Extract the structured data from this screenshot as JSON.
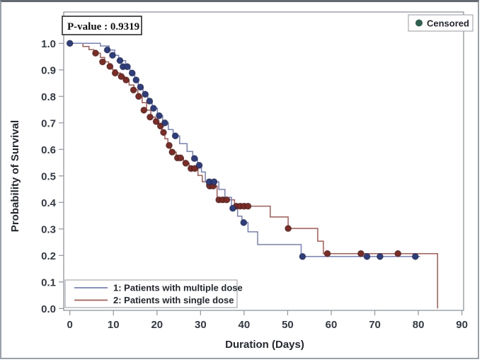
{
  "figure": {
    "pvalue_label": "P-value : 0.9319",
    "p_value": 0.9319,
    "censored_label": "Censored",
    "xlabel": "Duration (Days)",
    "ylabel": "Probability of Survival"
  },
  "colors": {
    "blue_line": "#7580bf",
    "blue_marker": "#2e3d7e",
    "red_line": "#aa5a52",
    "red_marker": "#7c2b25",
    "censored_legend_dot": "#2e5f4f",
    "frame": "#8f969e",
    "text": "#23272e",
    "pvalue_box_border": "#2b2b2b",
    "legend_box_border": "#a6abb0"
  },
  "chart_data": {
    "type": "line",
    "subtype": "kaplan-meier-step",
    "title": "",
    "xlabel": "Duration (Days)",
    "ylabel": "Probability of Survival",
    "xlim": [
      0,
      92
    ],
    "ylim": [
      0.0,
      1.0
    ],
    "x_ticks": [
      0,
      10,
      20,
      30,
      40,
      50,
      60,
      70,
      80,
      90
    ],
    "y_ticks": [
      0.0,
      0.1,
      0.2,
      0.3,
      0.4,
      0.5,
      0.6,
      0.7,
      0.8,
      0.9,
      1.0
    ],
    "grid": false,
    "p_value_annotation": "P-value : 0.9319",
    "censored_marker_label": "Censored",
    "legend_position": "bottom-left-inside",
    "series": [
      {
        "name": "1: Patients with multiple dose",
        "line_color": "#7580bf",
        "marker_color": "#2e3d7e",
        "end_day": 80.4,
        "steps": [
          [
            0,
            1.0
          ],
          [
            7,
            0.99
          ],
          [
            9,
            0.975
          ],
          [
            10.3,
            0.955
          ],
          [
            11.2,
            0.935
          ],
          [
            12.8,
            0.912
          ],
          [
            13.8,
            0.888
          ],
          [
            14.9,
            0.862
          ],
          [
            15.7,
            0.835
          ],
          [
            16.8,
            0.808
          ],
          [
            17.9,
            0.782
          ],
          [
            18.9,
            0.755
          ],
          [
            20.1,
            0.727
          ],
          [
            21.3,
            0.7
          ],
          [
            22.6,
            0.675
          ],
          [
            23.7,
            0.651
          ],
          [
            25.2,
            0.622
          ],
          [
            26.9,
            0.592
          ],
          [
            28.2,
            0.566
          ],
          [
            29.3,
            0.54
          ],
          [
            30.2,
            0.515
          ],
          [
            31.1,
            0.478
          ],
          [
            34.2,
            0.449
          ],
          [
            35.6,
            0.419
          ],
          [
            37.1,
            0.378
          ],
          [
            38.5,
            0.348
          ],
          [
            39.5,
            0.324
          ],
          [
            40.9,
            0.289
          ],
          [
            43.1,
            0.241
          ],
          [
            53.1,
            0.196
          ]
        ],
        "censored": [
          [
            0,
            1.0
          ],
          [
            8.6,
            0.975
          ],
          [
            9.8,
            0.955
          ],
          [
            11.5,
            0.935
          ],
          [
            12.2,
            0.912
          ],
          [
            13.2,
            0.912
          ],
          [
            14.3,
            0.888
          ],
          [
            15.2,
            0.862
          ],
          [
            16.2,
            0.835
          ],
          [
            17.3,
            0.808
          ],
          [
            18.3,
            0.782
          ],
          [
            19.2,
            0.755
          ],
          [
            20.5,
            0.727
          ],
          [
            21.8,
            0.7
          ],
          [
            24.2,
            0.651
          ],
          [
            28.6,
            0.566
          ],
          [
            29.7,
            0.54
          ],
          [
            32.0,
            0.478
          ],
          [
            33.1,
            0.478
          ],
          [
            37.4,
            0.378
          ],
          [
            39.9,
            0.324
          ],
          [
            53.4,
            0.196
          ],
          [
            68.2,
            0.196
          ],
          [
            71.2,
            0.196
          ],
          [
            79.3,
            0.196
          ]
        ]
      },
      {
        "name": "2: Patients with single dose",
        "line_color": "#aa5a52",
        "marker_color": "#7c2b25",
        "end_day": 84.4,
        "steps": [
          [
            0,
            1.0
          ],
          [
            3,
            0.988
          ],
          [
            4.4,
            0.976
          ],
          [
            5.5,
            0.963
          ],
          [
            7,
            0.947
          ],
          [
            8,
            0.93
          ],
          [
            8.9,
            0.913
          ],
          [
            9.8,
            0.9
          ],
          [
            10.7,
            0.888
          ],
          [
            11.6,
            0.875
          ],
          [
            12.6,
            0.862
          ],
          [
            13.6,
            0.843
          ],
          [
            14.7,
            0.824
          ],
          [
            15.6,
            0.8
          ],
          [
            16.6,
            0.776
          ],
          [
            17.6,
            0.748
          ],
          [
            18.6,
            0.722
          ],
          [
            19.6,
            0.705
          ],
          [
            20.4,
            0.688
          ],
          [
            21.1,
            0.664
          ],
          [
            21.8,
            0.64
          ],
          [
            22.5,
            0.615
          ],
          [
            23.1,
            0.59
          ],
          [
            24.4,
            0.568
          ],
          [
            26.1,
            0.548
          ],
          [
            27.4,
            0.528
          ],
          [
            29.4,
            0.502
          ],
          [
            30.4,
            0.478
          ],
          [
            31.4,
            0.462
          ],
          [
            33.8,
            0.41
          ],
          [
            37.8,
            0.386
          ],
          [
            46.0,
            0.345
          ],
          [
            50.1,
            0.302
          ],
          [
            56.9,
            0.254
          ],
          [
            58.2,
            0.207
          ],
          [
            84.4,
            0.0
          ]
        ],
        "censored": [
          [
            5.9,
            0.963
          ],
          [
            7.5,
            0.93
          ],
          [
            9.2,
            0.913
          ],
          [
            10.4,
            0.888
          ],
          [
            11.8,
            0.875
          ],
          [
            12.9,
            0.862
          ],
          [
            14.6,
            0.824
          ],
          [
            15.8,
            0.8
          ],
          [
            17.0,
            0.748
          ],
          [
            18.4,
            0.722
          ],
          [
            19.8,
            0.705
          ],
          [
            20.8,
            0.688
          ],
          [
            21.5,
            0.664
          ],
          [
            22.8,
            0.615
          ],
          [
            23.5,
            0.59
          ],
          [
            24.7,
            0.568
          ],
          [
            25.4,
            0.568
          ],
          [
            26.6,
            0.548
          ],
          [
            27.8,
            0.528
          ],
          [
            28.7,
            0.528
          ],
          [
            32.1,
            0.462
          ],
          [
            32.9,
            0.462
          ],
          [
            34.2,
            0.41
          ],
          [
            35.1,
            0.41
          ],
          [
            36.0,
            0.41
          ],
          [
            38.2,
            0.386
          ],
          [
            39.1,
            0.386
          ],
          [
            40.0,
            0.386
          ],
          [
            40.9,
            0.386
          ],
          [
            50.1,
            0.302
          ],
          [
            59.1,
            0.207
          ],
          [
            66.8,
            0.207
          ],
          [
            75.3,
            0.207
          ]
        ]
      }
    ]
  }
}
